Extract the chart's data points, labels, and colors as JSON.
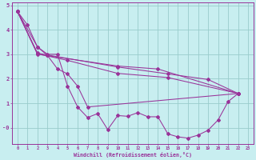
{
  "xlabel": "Windchill (Refroidissement éolien,°C)",
  "background_color": "#c8eef0",
  "grid_color": "#99cccc",
  "line_color": "#993399",
  "xlim": [
    -0.5,
    23.5
  ],
  "ylim": [
    -0.65,
    5.1
  ],
  "ytick_values": [
    0,
    1,
    2,
    3,
    4,
    5
  ],
  "ytick_labels": [
    "-0",
    "1",
    "2",
    "3",
    "4",
    "5"
  ],
  "line_main": [
    [
      0,
      4.75
    ],
    [
      1,
      4.2
    ],
    [
      2,
      3.3
    ],
    [
      3,
      3.0
    ],
    [
      4,
      3.0
    ],
    [
      5,
      1.7
    ],
    [
      6,
      0.85
    ],
    [
      7,
      0.42
    ],
    [
      8,
      0.58
    ],
    [
      9,
      -0.07
    ],
    [
      10,
      0.5
    ],
    [
      11,
      0.47
    ],
    [
      12,
      0.62
    ],
    [
      13,
      0.45
    ],
    [
      14,
      0.45
    ],
    [
      15,
      -0.25
    ],
    [
      16,
      -0.37
    ],
    [
      17,
      -0.42
    ],
    [
      18,
      -0.3
    ],
    [
      19,
      -0.1
    ],
    [
      20,
      0.32
    ],
    [
      21,
      1.07
    ],
    [
      22,
      1.4
    ]
  ],
  "line2": [
    [
      0,
      4.75
    ],
    [
      2,
      3.3
    ],
    [
      3,
      2.95
    ],
    [
      4,
      2.4
    ],
    [
      5,
      2.2
    ],
    [
      6,
      1.7
    ],
    [
      7,
      0.85
    ],
    [
      22,
      1.4
    ]
  ],
  "line3": [
    [
      0,
      4.75
    ],
    [
      2,
      3.05
    ],
    [
      3,
      2.97
    ],
    [
      10,
      2.48
    ],
    [
      15,
      2.2
    ],
    [
      19,
      1.97
    ],
    [
      22,
      1.4
    ]
  ],
  "line4": [
    [
      0,
      4.75
    ],
    [
      2,
      3.02
    ],
    [
      5,
      2.75
    ],
    [
      10,
      2.22
    ],
    [
      15,
      2.05
    ],
    [
      22,
      1.4
    ]
  ],
  "line5": [
    [
      0,
      4.75
    ],
    [
      2,
      3.0
    ],
    [
      10,
      2.52
    ],
    [
      14,
      2.4
    ],
    [
      22,
      1.4
    ]
  ]
}
